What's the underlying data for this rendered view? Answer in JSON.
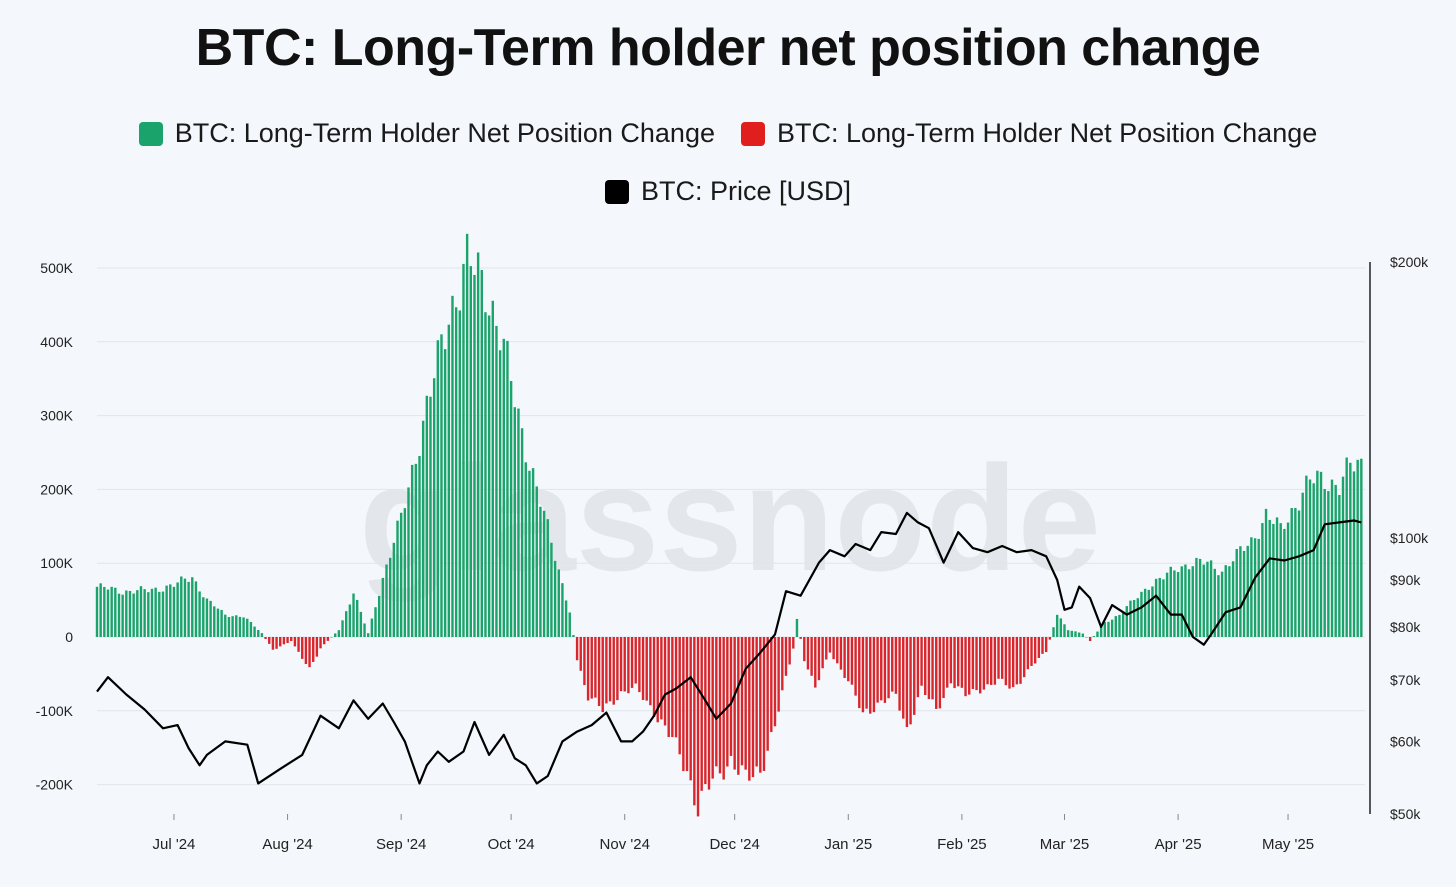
{
  "title": "BTC: Long-Term holder net position change",
  "legend": [
    {
      "label": "BTC: Long-Term Holder Net Position Change",
      "color": "#1aa36a"
    },
    {
      "label": "BTC: Long-Term Holder Net Position Change",
      "color": "#e01e1e"
    },
    {
      "label": "BTC: Price [USD]",
      "color": "#000000"
    }
  ],
  "watermark": "glassnode",
  "chart_data": {
    "type": "bar",
    "x_labels": [
      "Jul '24",
      "Aug '24",
      "Sep '24",
      "Oct '24",
      "Nov '24",
      "Dec '24",
      "Jan '25",
      "Feb '25",
      "Mar '25",
      "Apr '25",
      "May '25"
    ],
    "x_range": [
      "2024-06-10",
      "2025-05-22"
    ],
    "left_axis": {
      "ticks": [
        "500K",
        "400K",
        "300K",
        "200K",
        "100K",
        "0",
        "-100K",
        "-200K"
      ],
      "values": [
        500000,
        400000,
        300000,
        200000,
        100000,
        0,
        -100000,
        -200000
      ],
      "ylim": [
        -235000,
        520000
      ]
    },
    "right_axis": {
      "scale": "log",
      "ticks": [
        "$200k",
        "$100k",
        "$90k",
        "$80k",
        "$70k",
        "$60k",
        "$50k"
      ],
      "values": [
        200000,
        100000,
        90000,
        80000,
        70000,
        60000,
        50000
      ],
      "ylim": [
        50000,
        200000
      ]
    },
    "grid": true,
    "series": [
      {
        "type": "bar",
        "positive_color": "#1aa36a",
        "negative_color": "#d9262c",
        "points": [
          [
            "2024-06-10",
            68000
          ],
          [
            "2024-06-17",
            62000
          ],
          [
            "2024-06-24",
            63000
          ],
          [
            "2024-07-01",
            70000
          ],
          [
            "2024-07-06",
            82000
          ],
          [
            "2024-07-10",
            50000
          ],
          [
            "2024-07-15",
            30000
          ],
          [
            "2024-07-20",
            28000
          ],
          [
            "2024-07-25",
            5000
          ],
          [
            "2024-07-28",
            -18000
          ],
          [
            "2024-08-02",
            -5000
          ],
          [
            "2024-08-07",
            -45000
          ],
          [
            "2024-08-10",
            -15000
          ],
          [
            "2024-08-15",
            10000
          ],
          [
            "2024-08-19",
            60000
          ],
          [
            "2024-08-23",
            5000
          ],
          [
            "2024-08-27",
            80000
          ],
          [
            "2024-09-01",
            160000
          ],
          [
            "2024-09-06",
            270000
          ],
          [
            "2024-09-11",
            370000
          ],
          [
            "2024-09-14",
            440000
          ],
          [
            "2024-09-19",
            505000
          ],
          [
            "2024-09-24",
            480000
          ],
          [
            "2024-09-28",
            410000
          ],
          [
            "2024-10-03",
            300000
          ],
          [
            "2024-10-08",
            200000
          ],
          [
            "2024-10-13",
            110000
          ],
          [
            "2024-10-17",
            35000
          ],
          [
            "2024-10-19",
            -30000
          ],
          [
            "2024-10-22",
            -80000
          ],
          [
            "2024-10-26",
            -100000
          ],
          [
            "2024-10-31",
            -75000
          ],
          [
            "2024-11-04",
            -70000
          ],
          [
            "2024-11-09",
            -100000
          ],
          [
            "2024-11-14",
            -140000
          ],
          [
            "2024-11-18",
            -180000
          ],
          [
            "2024-11-21",
            -230000
          ],
          [
            "2024-11-25",
            -195000
          ],
          [
            "2024-11-30",
            -165000
          ],
          [
            "2024-12-04",
            -195000
          ],
          [
            "2024-12-08",
            -180000
          ],
          [
            "2024-12-12",
            -120000
          ],
          [
            "2024-12-17",
            -15000
          ],
          [
            "2024-12-18",
            25000
          ],
          [
            "2024-12-20",
            -30000
          ],
          [
            "2024-12-23",
            -70000
          ],
          [
            "2024-12-27",
            -20000
          ],
          [
            "2025-01-01",
            -60000
          ],
          [
            "2025-01-05",
            -105000
          ],
          [
            "2025-01-09",
            -90000
          ],
          [
            "2025-01-14",
            -80000
          ],
          [
            "2025-01-17",
            -125000
          ],
          [
            "2025-01-21",
            -70000
          ],
          [
            "2025-01-25",
            -100000
          ],
          [
            "2025-01-29",
            -60000
          ],
          [
            "2025-02-02",
            -80000
          ],
          [
            "2025-02-06",
            -70000
          ],
          [
            "2025-02-11",
            -60000
          ],
          [
            "2025-02-15",
            -70000
          ],
          [
            "2025-02-20",
            -40000
          ],
          [
            "2025-02-24",
            -20000
          ],
          [
            "2025-02-27",
            30000
          ],
          [
            "2025-03-02",
            10000
          ],
          [
            "2025-03-06",
            5000
          ],
          [
            "2025-03-08",
            -5000
          ],
          [
            "2025-03-12",
            20000
          ],
          [
            "2025-03-16",
            30000
          ],
          [
            "2025-03-20",
            50000
          ],
          [
            "2025-03-24",
            70000
          ],
          [
            "2025-03-28",
            80000
          ],
          [
            "2025-04-01",
            95000
          ],
          [
            "2025-04-05",
            100000
          ],
          [
            "2025-04-09",
            100000
          ],
          [
            "2025-04-13",
            90000
          ],
          [
            "2025-04-17",
            110000
          ],
          [
            "2025-04-21",
            130000
          ],
          [
            "2025-04-25",
            165000
          ],
          [
            "2025-04-29",
            145000
          ],
          [
            "2025-05-03",
            180000
          ],
          [
            "2025-05-07",
            210000
          ],
          [
            "2025-05-11",
            215000
          ],
          [
            "2025-05-15",
            205000
          ],
          [
            "2025-05-18",
            230000
          ],
          [
            "2025-05-21",
            235000
          ]
        ]
      },
      {
        "name": "BTC: Price [USD]",
        "type": "line",
        "color": "#000000",
        "points": [
          [
            "2024-06-10",
            68000
          ],
          [
            "2024-06-13",
            70500
          ],
          [
            "2024-06-18",
            67500
          ],
          [
            "2024-06-23",
            65000
          ],
          [
            "2024-06-28",
            62000
          ],
          [
            "2024-07-02",
            62500
          ],
          [
            "2024-07-05",
            59000
          ],
          [
            "2024-07-08",
            56500
          ],
          [
            "2024-07-10",
            58000
          ],
          [
            "2024-07-15",
            60000
          ],
          [
            "2024-07-21",
            59500
          ],
          [
            "2024-07-24",
            54000
          ],
          [
            "2024-07-30",
            56000
          ],
          [
            "2024-08-05",
            58000
          ],
          [
            "2024-08-10",
            64000
          ],
          [
            "2024-08-15",
            62000
          ],
          [
            "2024-08-19",
            66500
          ],
          [
            "2024-08-23",
            63500
          ],
          [
            "2024-08-27",
            66000
          ],
          [
            "2024-08-30",
            63000
          ],
          [
            "2024-09-02",
            60000
          ],
          [
            "2024-09-06",
            54000
          ],
          [
            "2024-09-08",
            56500
          ],
          [
            "2024-09-11",
            58500
          ],
          [
            "2024-09-14",
            57000
          ],
          [
            "2024-09-18",
            58500
          ],
          [
            "2024-09-21",
            63000
          ],
          [
            "2024-09-25",
            58000
          ],
          [
            "2024-09-29",
            61000
          ],
          [
            "2024-10-02",
            57500
          ],
          [
            "2024-10-05",
            56500
          ],
          [
            "2024-10-08",
            54000
          ],
          [
            "2024-10-11",
            55000
          ],
          [
            "2024-10-15",
            60000
          ],
          [
            "2024-10-19",
            61500
          ],
          [
            "2024-10-23",
            62500
          ],
          [
            "2024-10-27",
            64500
          ],
          [
            "2024-10-31",
            60000
          ],
          [
            "2024-11-03",
            60000
          ],
          [
            "2024-11-06",
            61500
          ],
          [
            "2024-11-09",
            64000
          ],
          [
            "2024-11-12",
            67500
          ],
          [
            "2024-11-15",
            68500
          ],
          [
            "2024-11-19",
            70500
          ],
          [
            "2024-11-23",
            66500
          ],
          [
            "2024-11-26",
            63500
          ],
          [
            "2024-11-30",
            66000
          ],
          [
            "2024-12-04",
            72000
          ],
          [
            "2024-12-08",
            75000
          ],
          [
            "2024-12-12",
            78500
          ],
          [
            "2024-12-15",
            87500
          ],
          [
            "2024-12-19",
            86500
          ],
          [
            "2024-12-24",
            94000
          ],
          [
            "2024-12-27",
            97000
          ],
          [
            "2024-12-31",
            95500
          ],
          [
            "2025-01-03",
            98500
          ],
          [
            "2025-01-07",
            97000
          ],
          [
            "2025-01-10",
            101500
          ],
          [
            "2025-01-14",
            101000
          ],
          [
            "2025-01-17",
            106500
          ],
          [
            "2025-01-20",
            104000
          ],
          [
            "2025-01-23",
            102500
          ],
          [
            "2025-01-27",
            94000
          ],
          [
            "2025-01-31",
            101500
          ],
          [
            "2025-02-04",
            97500
          ],
          [
            "2025-02-08",
            96500
          ],
          [
            "2025-02-12",
            98000
          ],
          [
            "2025-02-16",
            96500
          ],
          [
            "2025-02-20",
            97000
          ],
          [
            "2025-02-24",
            95500
          ],
          [
            "2025-02-27",
            90000
          ],
          [
            "2025-03-01",
            83500
          ],
          [
            "2025-03-03",
            84000
          ],
          [
            "2025-03-05",
            88500
          ],
          [
            "2025-03-08",
            86000
          ],
          [
            "2025-03-11",
            80000
          ],
          [
            "2025-03-14",
            84500
          ],
          [
            "2025-03-18",
            82500
          ],
          [
            "2025-03-22",
            84000
          ],
          [
            "2025-03-26",
            86500
          ],
          [
            "2025-03-30",
            82500
          ],
          [
            "2025-04-02",
            82500
          ],
          [
            "2025-04-05",
            78000
          ],
          [
            "2025-04-08",
            76500
          ],
          [
            "2025-04-10",
            78500
          ],
          [
            "2025-04-14",
            83000
          ],
          [
            "2025-04-18",
            84000
          ],
          [
            "2025-04-22",
            90500
          ],
          [
            "2025-04-26",
            95000
          ],
          [
            "2025-04-30",
            94500
          ],
          [
            "2025-05-04",
            95500
          ],
          [
            "2025-05-08",
            97000
          ],
          [
            "2025-05-11",
            103500
          ],
          [
            "2025-05-15",
            104000
          ],
          [
            "2025-05-19",
            104500
          ],
          [
            "2025-05-21",
            104000
          ]
        ]
      }
    ]
  }
}
